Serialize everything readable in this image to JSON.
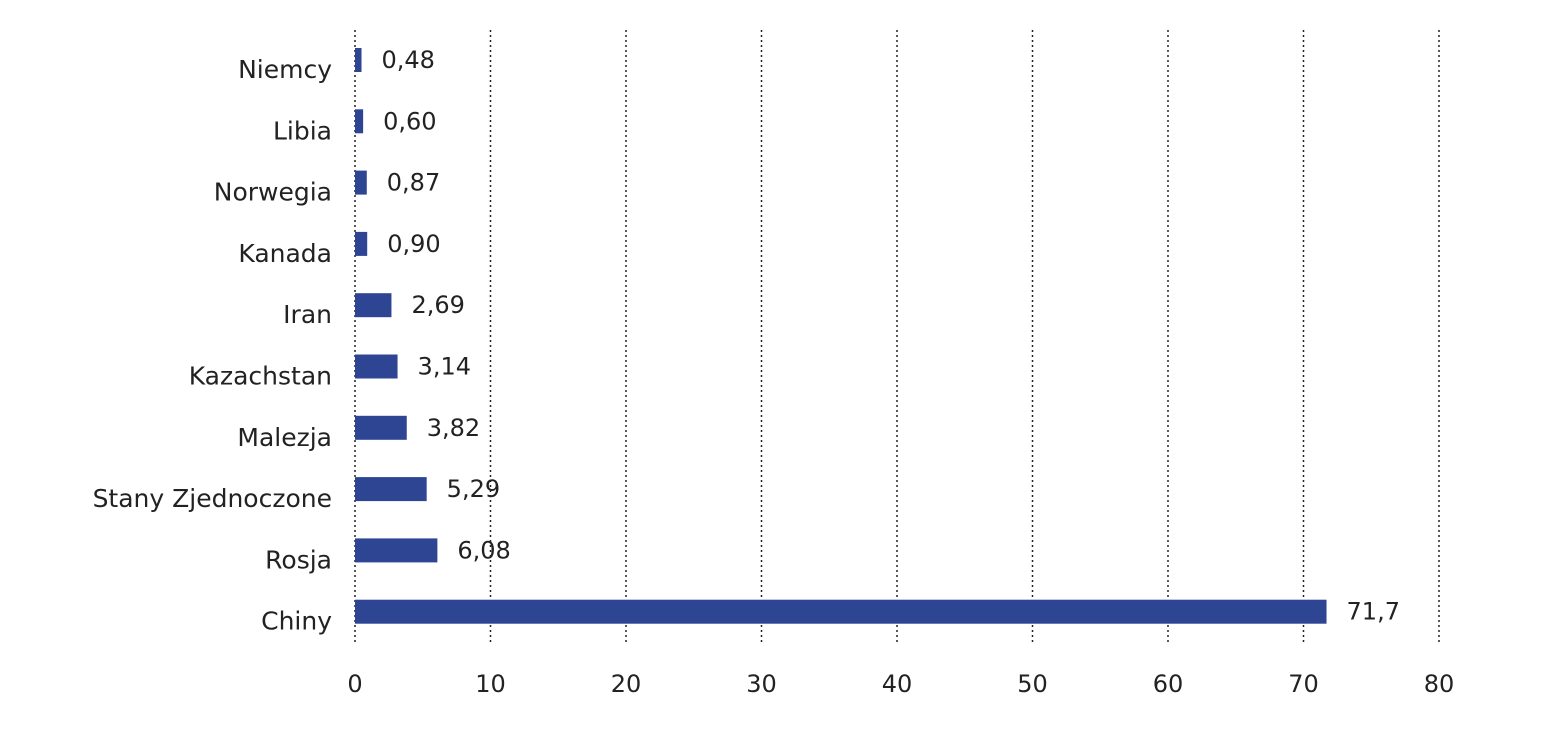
{
  "chart_data": {
    "type": "bar",
    "orientation": "horizontal",
    "categories": [
      "Niemcy",
      "Libia",
      "Norwegia",
      "Kanada",
      "Iran",
      "Kazachstan",
      "Malezja",
      "Stany Zjednoczone",
      "Rosja",
      "Chiny"
    ],
    "values": [
      0.48,
      0.6,
      0.87,
      0.9,
      2.69,
      3.14,
      3.82,
      5.29,
      6.08,
      71.7
    ],
    "value_labels": [
      "0,48",
      "0,60",
      "0,87",
      "0,90",
      "2,69",
      "3,14",
      "3,82",
      "5,29",
      "6,08",
      "71,7"
    ],
    "xlim": [
      0,
      80
    ],
    "xticks": [
      0,
      10,
      20,
      30,
      40,
      50,
      60,
      70,
      80
    ],
    "xtick_labels": [
      "0",
      "10",
      "20",
      "30",
      "40",
      "50",
      "60",
      "70",
      "80"
    ],
    "grid": "vertical-dotted",
    "bar_color": "#2e4594",
    "title": "",
    "xlabel": "",
    "ylabel": "",
    "legend": "none"
  }
}
